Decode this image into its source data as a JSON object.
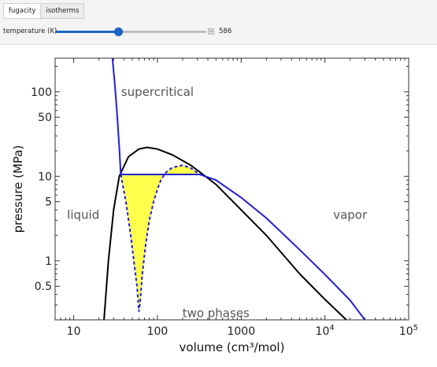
{
  "tabs": [
    {
      "label": "fugacity",
      "active": true
    },
    {
      "label": "isotherms",
      "active": false
    }
  ],
  "slider": {
    "label": "temperature (K)",
    "value": "586",
    "fraction": 0.415
  },
  "colors": {
    "accent": "#1b68c7",
    "isotherm": "#1f1fd6",
    "dome": "#000000",
    "fill": "#ffff4d"
  },
  "chart_data": {
    "type": "line",
    "xlabel": "volume (cm³/mol)",
    "ylabel": "pressure (MPa)",
    "x_scale": "log",
    "y_scale": "log",
    "xlim": [
      6,
      100000
    ],
    "ylim": [
      0.2,
      250
    ],
    "x_ticks": [
      {
        "value": 10,
        "label": "10"
      },
      {
        "value": 100,
        "label": "100"
      },
      {
        "value": 1000,
        "label": "1000"
      },
      {
        "value": 10000,
        "label": "10",
        "sup": "4"
      },
      {
        "value": 100000,
        "label": "10",
        "sup": "5"
      }
    ],
    "y_ticks": [
      {
        "value": 0.5,
        "label": "0.5"
      },
      {
        "value": 1,
        "label": "1"
      },
      {
        "value": 5,
        "label": "5"
      },
      {
        "value": 10,
        "label": "10"
      },
      {
        "value": 50,
        "label": "50"
      },
      {
        "value": 100,
        "label": "100"
      }
    ],
    "annotations": [
      {
        "text": "supercritical",
        "x": 100,
        "y": 100
      },
      {
        "text": "liquid",
        "x": 13,
        "y": 3.5
      },
      {
        "text": "vapor",
        "x": 20000,
        "y": 3.5
      },
      {
        "text": "two phases",
        "x": 500,
        "y": 0.24
      }
    ],
    "series": [
      {
        "id": "coexistence-curve",
        "x": [
          23,
          26,
          30,
          35,
          45,
          60,
          75,
          100,
          150,
          250,
          350,
          500,
          1000,
          2000,
          5000,
          10000,
          18000
        ],
        "y": [
          0.2,
          1.0,
          4.0,
          10.0,
          17.0,
          21.0,
          22.0,
          21.0,
          18.0,
          13.5,
          10.5,
          8.0,
          4.0,
          2.0,
          0.7,
          0.35,
          0.2
        ]
      },
      {
        "id": "isotherm",
        "x": [
          29,
          31,
          33,
          35,
          36.5,
          320,
          500,
          1000,
          2000,
          5000,
          10000,
          20000,
          30000
        ],
        "y": [
          250,
          120,
          55,
          22,
          10.5,
          10.5,
          9.0,
          5.6,
          3.2,
          1.35,
          0.69,
          0.34,
          0.2
        ]
      },
      {
        "id": "van-der-waals-loop",
        "style": "dashed",
        "x": [
          36.5,
          42,
          48,
          53,
          57,
          59,
          60,
          62,
          66,
          72,
          80,
          90,
          100,
          110,
          125,
          150,
          200,
          250,
          320
        ],
        "y": [
          10.5,
          5.0,
          2.0,
          0.9,
          0.5,
          0.32,
          0.25,
          0.32,
          0.7,
          1.5,
          3.0,
          5.0,
          7.0,
          9.0,
          11.0,
          12.7,
          13.5,
          12.5,
          10.5
        ]
      }
    ]
  }
}
